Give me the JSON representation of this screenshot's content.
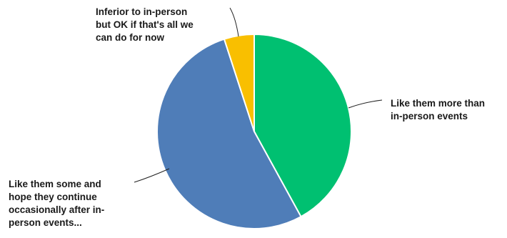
{
  "chart_data": {
    "type": "pie",
    "slices": [
      {
        "label": "Like them more than in-person events",
        "value": 42,
        "color": "#00c071"
      },
      {
        "label": "Like them some and hope they continue occasionally after in-person events...",
        "value": 53,
        "color": "#4f7db8"
      },
      {
        "label": "Inferior to in-person but OK if that's all we can do for now",
        "value": 5,
        "color": "#f9bf00"
      }
    ],
    "labels": [
      "Like them more than\nin-person events",
      "Like them some and\nhope they continue\noccasionally after in-\nperson events...",
      "Inferior to in-person\nbut OK if that's all we\ncan do for now"
    ],
    "legend": "none",
    "start": "12 o'clock, clockwise"
  }
}
